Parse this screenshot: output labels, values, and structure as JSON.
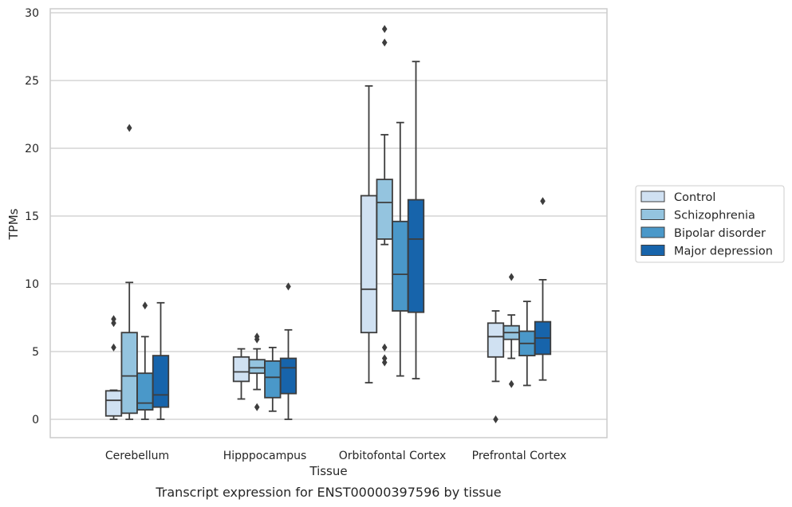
{
  "chart_data": {
    "type": "box",
    "title": "",
    "caption": "Transcript expression for ENST00000397596 by tissue",
    "xlabel": "Tissue",
    "ylabel": "TPMs",
    "ylim": [
      -1.3,
      30.3
    ],
    "yticks": [
      0,
      5,
      10,
      15,
      20,
      25,
      30
    ],
    "grid": "horizontal",
    "legend_position": "right",
    "categories": [
      "Cerebellum",
      "Hipppocampus",
      "Orbitofontal Cortex",
      "Prefrontal Cortex"
    ],
    "series": [
      {
        "name": "Control",
        "color": "#d0e1f2",
        "boxes": [
          {
            "whislo": 0.0,
            "q1": 0.25,
            "med": 1.4,
            "q3": 2.1,
            "whishi": 2.15,
            "fliers": [
              5.3,
              7.1,
              7.4
            ]
          },
          {
            "whislo": 1.5,
            "q1": 2.8,
            "med": 3.5,
            "q3": 4.6,
            "whishi": 5.2,
            "fliers": []
          },
          {
            "whislo": 2.7,
            "q1": 6.4,
            "med": 9.6,
            "q3": 16.5,
            "whishi": 24.6,
            "fliers": []
          },
          {
            "whislo": 2.8,
            "q1": 4.6,
            "med": 6.1,
            "q3": 7.1,
            "whishi": 8.0,
            "fliers": [
              0.0
            ]
          }
        ]
      },
      {
        "name": "Schizophrenia",
        "color": "#94c4df",
        "boxes": [
          {
            "whislo": 0.0,
            "q1": 0.45,
            "med": 3.2,
            "q3": 6.4,
            "whishi": 10.1,
            "fliers": [
              21.5
            ]
          },
          {
            "whislo": 2.2,
            "q1": 3.4,
            "med": 3.8,
            "q3": 4.4,
            "whishi": 5.2,
            "fliers": [
              0.9,
              5.9,
              6.1
            ]
          },
          {
            "whislo": 12.9,
            "q1": 13.3,
            "med": 16.0,
            "q3": 17.7,
            "whishi": 21.0,
            "fliers": [
              4.2,
              4.5,
              5.3,
              27.8,
              28.8
            ]
          },
          {
            "whislo": 4.5,
            "q1": 5.9,
            "med": 6.4,
            "q3": 6.9,
            "whishi": 7.7,
            "fliers": [
              2.6,
              10.5
            ]
          }
        ]
      },
      {
        "name": "Bipolar disorder",
        "color": "#4a98c9",
        "boxes": [
          {
            "whislo": 0.0,
            "q1": 0.7,
            "med": 1.2,
            "q3": 3.4,
            "whishi": 6.1,
            "fliers": [
              8.4
            ]
          },
          {
            "whislo": 0.6,
            "q1": 1.6,
            "med": 3.1,
            "q3": 4.3,
            "whishi": 5.3,
            "fliers": []
          },
          {
            "whislo": 3.2,
            "q1": 8.0,
            "med": 10.7,
            "q3": 14.6,
            "whishi": 21.9,
            "fliers": []
          },
          {
            "whislo": 2.5,
            "q1": 4.7,
            "med": 5.6,
            "q3": 6.5,
            "whishi": 8.7,
            "fliers": []
          }
        ]
      },
      {
        "name": "Major depression",
        "color": "#1764ab",
        "boxes": [
          {
            "whislo": 0.0,
            "q1": 0.9,
            "med": 1.8,
            "q3": 4.7,
            "whishi": 8.6,
            "fliers": []
          },
          {
            "whislo": 0.0,
            "q1": 1.9,
            "med": 3.8,
            "q3": 4.5,
            "whishi": 6.6,
            "fliers": [
              9.8
            ]
          },
          {
            "whislo": 3.0,
            "q1": 7.9,
            "med": 13.3,
            "q3": 16.2,
            "whishi": 26.4,
            "fliers": []
          },
          {
            "whislo": 2.9,
            "q1": 4.8,
            "med": 6.0,
            "q3": 7.2,
            "whishi": 10.3,
            "fliers": [
              16.1
            ]
          }
        ]
      }
    ]
  }
}
